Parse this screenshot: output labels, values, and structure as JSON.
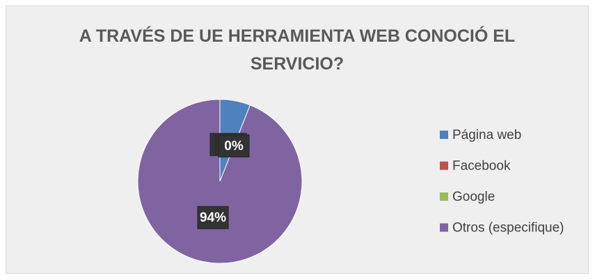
{
  "chart_data": {
    "type": "pie",
    "title": "A TRAVÉS DE UE HERRAMIENTA WEB CONOCIÓ EL SERVICIO?",
    "categories": [
      "Página web",
      "Facebook",
      "Google",
      "Otros (especifique)"
    ],
    "values": [
      6,
      0,
      0,
      94
    ],
    "value_labels": [
      "6%",
      "0%",
      "0%",
      "94%"
    ],
    "colors": [
      "#4f81bd",
      "#c0504d",
      "#9bbb59",
      "#8064a2"
    ],
    "legend": "right"
  }
}
